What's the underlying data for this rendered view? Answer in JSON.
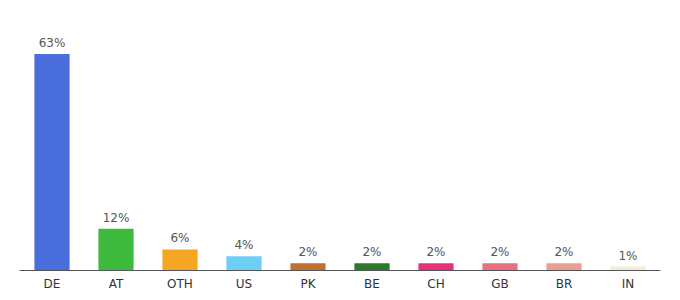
{
  "chart_data": {
    "type": "bar",
    "categories": [
      "DE",
      "AT",
      "OTH",
      "US",
      "PK",
      "BE",
      "CH",
      "GB",
      "BR",
      "IN"
    ],
    "values": [
      63,
      12,
      6,
      4,
      2,
      2,
      2,
      2,
      2,
      1
    ],
    "value_labels": [
      "63%",
      "12%",
      "6%",
      "4%",
      "2%",
      "2%",
      "2%",
      "2%",
      "2%",
      "1%"
    ],
    "colors": [
      "#4a6fdc",
      "#3dba3d",
      "#f5a623",
      "#6ecff6",
      "#c07030",
      "#2a7a2a",
      "#e8317a",
      "#e87080",
      "#e8a090",
      "#f0f0d0"
    ],
    "ylim": [
      0,
      70
    ],
    "grid": false,
    "data_labels": true,
    "tick_labels": "x"
  }
}
